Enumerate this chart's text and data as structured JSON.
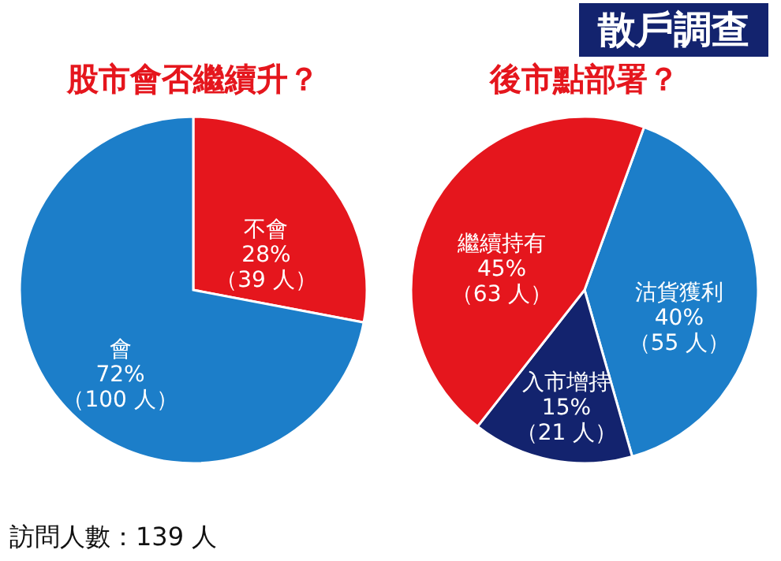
{
  "chart_data": [
    {
      "type": "other",
      "title": "散戶調查"
    },
    {
      "type": "pie",
      "title": "股市會否繼續升？",
      "annotations": [
        "訪問人數：139 人"
      ],
      "legend": false,
      "categories": [
        "不會",
        "會"
      ],
      "values": [
        28,
        72
      ],
      "value_labels": [
        "28%\n（39 人）",
        "72%\n（100 人）"
      ],
      "colors": [
        "#e5161d",
        "#1c7ec9"
      ]
    },
    {
      "type": "pie",
      "title": "後市點部署？",
      "legend": false,
      "categories": [
        "沽貨獲利",
        "入市增持",
        "繼續持有"
      ],
      "values": [
        40,
        15,
        45
      ],
      "value_labels": [
        "40%\n（55 人）",
        "15%\n（21 人）",
        "45%\n（63 人）"
      ],
      "colors": [
        "#1c7ec9",
        "#13236e",
        "#e5161d"
      ]
    }
  ]
}
